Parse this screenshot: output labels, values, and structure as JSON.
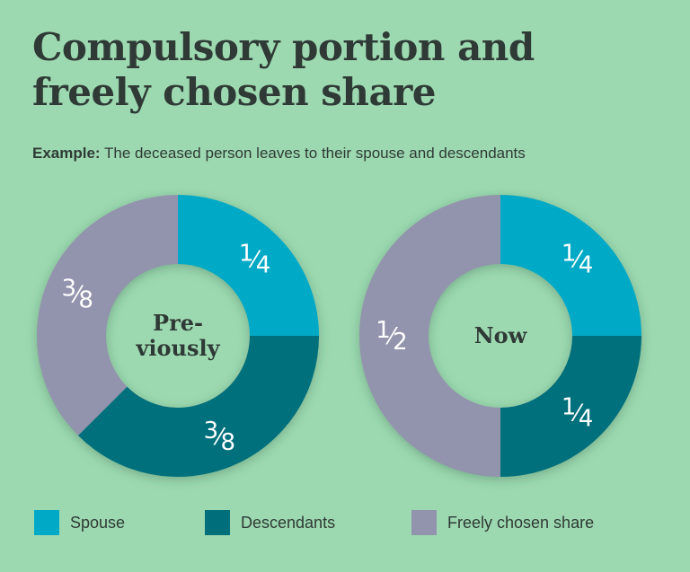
{
  "title": "Compulsory portion and freely chosen share",
  "subtitle": {
    "label": "Example:",
    "text": "The deceased person leaves to their spouse and descendants"
  },
  "colors": {
    "Spouse": "#00a9c5",
    "Descendants": "#006f7c",
    "Freely chosen share": "#9293ac"
  },
  "chart_data": [
    {
      "type": "pie",
      "variant": "donut",
      "center_label": "Pre-\nviously",
      "slices": [
        {
          "name": "Spouse",
          "value": 0.25,
          "label": "1/4"
        },
        {
          "name": "Descendants",
          "value": 0.375,
          "label": "3/8"
        },
        {
          "name": "Freely chosen share",
          "value": 0.375,
          "label": "3/8"
        }
      ]
    },
    {
      "type": "pie",
      "variant": "donut",
      "center_label": "Now",
      "slices": [
        {
          "name": "Spouse",
          "value": 0.25,
          "label": "1/4"
        },
        {
          "name": "Descendants",
          "value": 0.25,
          "label": "1/4"
        },
        {
          "name": "Freely chosen share",
          "value": 0.5,
          "label": "1/2"
        }
      ]
    }
  ],
  "legend": [
    {
      "name": "Spouse",
      "label": "Spouse"
    },
    {
      "name": "Descendants",
      "label": "Descendants"
    },
    {
      "name": "Freely chosen share",
      "label": "Freely chosen share"
    }
  ]
}
